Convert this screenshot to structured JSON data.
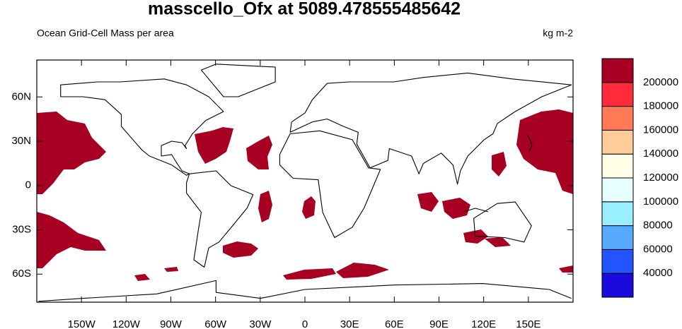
{
  "title": "masscello_Ofx at 5089.478555485642",
  "subtitle_left": "Ocean Grid-Cell Mass per area",
  "units": "kg m-2",
  "lonlim": [
    -180,
    180
  ],
  "latlim": [
    -79,
    85
  ],
  "lon_ticks": [
    {
      "value": -150,
      "label": "150W"
    },
    {
      "value": -120,
      "label": "120W"
    },
    {
      "value": -90,
      "label": "90W"
    },
    {
      "value": -60,
      "label": "60W"
    },
    {
      "value": -30,
      "label": "30W"
    },
    0,
    {
      "value": 30,
      "label": "30E"
    },
    {
      "value": 60,
      "label": "60E"
    },
    {
      "value": 90,
      "label": "90E"
    },
    {
      "value": 120,
      "label": "120E"
    },
    {
      "value": 150,
      "label": "150E"
    }
  ],
  "lat_ticks": [
    {
      "value": 60,
      "label": "60N"
    },
    {
      "value": 30,
      "label": "30N"
    },
    0,
    {
      "value": -30,
      "label": "30S"
    },
    {
      "value": -60,
      "label": "60S"
    }
  ],
  "colorbar": {
    "levels": [
      40000,
      60000,
      80000,
      100000,
      120000,
      140000,
      160000,
      180000,
      200000
    ],
    "colors": [
      "#1a0adc",
      "#2255ff",
      "#55aaff",
      "#99eeff",
      "#e6ffff",
      "#fffde6",
      "#ffcc99",
      "#ff7a55",
      "#ff2a3a",
      "#a80023"
    ]
  }
}
